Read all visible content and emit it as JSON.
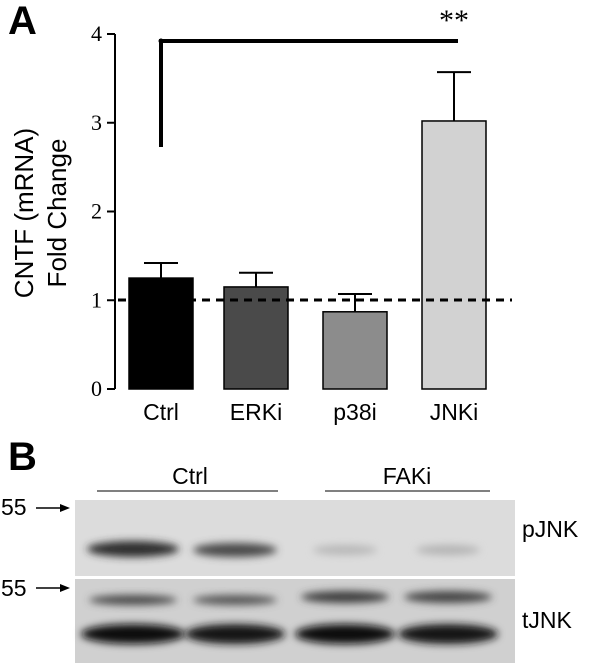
{
  "panel_a": {
    "letter": "A",
    "significance": "**"
  },
  "panel_b": {
    "letter": "B",
    "groups": [
      "Ctrl",
      "FAKi"
    ],
    "marker_top": "55",
    "marker_bottom": "55",
    "blot_labels": [
      "pJNK",
      "tJNK"
    ]
  },
  "chart_data": {
    "type": "bar",
    "categories": [
      "Ctrl",
      "ERKi",
      "p38i",
      "JNKi"
    ],
    "values": [
      1.25,
      1.15,
      0.87,
      3.02
    ],
    "errors": [
      0.17,
      0.16,
      0.2,
      0.55
    ],
    "colors": [
      "#000000",
      "#4a4a4a",
      "#8c8c8c",
      "#d2d2d2"
    ],
    "ylabel_lines": [
      "CNTF (mRNA)",
      "Fold Change"
    ],
    "xlabel": "",
    "ylim": [
      0,
      4
    ],
    "yticks": [
      "0",
      "1",
      "2",
      "3",
      "4"
    ],
    "reference_line": 1,
    "comparison": {
      "from": "Ctrl",
      "to": "JNKi",
      "label": "**"
    }
  }
}
